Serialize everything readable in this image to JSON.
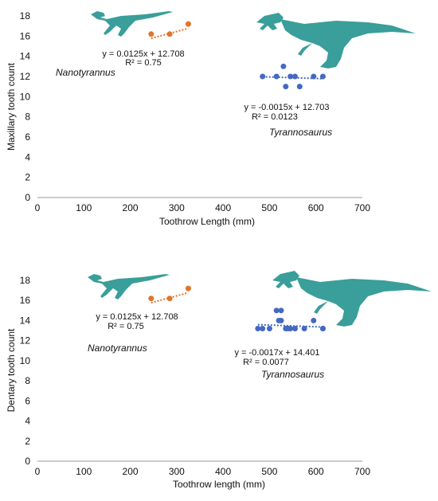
{
  "colors": {
    "nanotyrannus": "#E0752C",
    "tyrannosaurus": "#4468C4",
    "silhouette": "#3A9E9A",
    "axis": "#999999"
  },
  "chart_data": [
    {
      "type": "scatter",
      "xlabel": "Toothrow Length (mm)",
      "ylabel": "Maxillary tooth count",
      "xlim": [
        0,
        700
      ],
      "ylim": [
        0,
        18
      ],
      "xticks": [
        "0",
        "100",
        "200",
        "300",
        "400",
        "500",
        "600",
        "700"
      ],
      "yticks": [
        "0",
        "2",
        "4",
        "6",
        "8",
        "10",
        "12",
        "14",
        "16",
        "18"
      ],
      "grid": false,
      "series": [
        {
          "name": "Nanotyrannus",
          "x": [
            245,
            285,
            325
          ],
          "y": [
            16.2,
            16.2,
            17.2
          ],
          "trendline": {
            "equation": "y = 0.0125x + 12.708",
            "r2": "R² = 0.75",
            "slope": 0.0125,
            "intercept": 12.708
          }
        },
        {
          "name": "Tyrannosaurus",
          "x": [
            485,
            515,
            530,
            535,
            545,
            555,
            565,
            595,
            615
          ],
          "y": [
            12,
            12,
            13,
            11,
            12,
            12,
            11,
            12,
            12
          ],
          "trendline": {
            "equation": "y =  -0.0015x + 12.703",
            "r2": "R² = 0.0123",
            "slope": -0.0015,
            "intercept": 12.703
          }
        }
      ]
    },
    {
      "type": "scatter",
      "xlabel": "Toothrow length (mm)",
      "ylabel": "Dentary tooth count",
      "xlim": [
        0,
        700
      ],
      "ylim": [
        0,
        18
      ],
      "xticks": [
        "0",
        "100",
        "200",
        "300",
        "400",
        "500",
        "600",
        "700"
      ],
      "yticks": [
        "0",
        "2",
        "4",
        "6",
        "8",
        "10",
        "12",
        "14",
        "16",
        "18"
      ],
      "grid": false,
      "series": [
        {
          "name": "Nanotyrannus",
          "x": [
            245,
            285,
            325
          ],
          "y": [
            16.2,
            16.2,
            17.2
          ],
          "trendline": {
            "equation": "y = 0.0125x + 12.708",
            "r2": "R² = 0.75",
            "slope": 0.0125,
            "intercept": 12.708
          }
        },
        {
          "name": "Tyrannosaurus",
          "x": [
            475,
            485,
            500,
            515,
            520,
            525,
            525,
            535,
            540,
            545,
            555,
            575,
            595,
            615,
            615
          ],
          "y": [
            13.2,
            13.2,
            13.2,
            15,
            14,
            15,
            14,
            13.2,
            13.2,
            13.2,
            13.2,
            13.2,
            14,
            13.2,
            13.2
          ],
          "trendline": {
            "equation": "y =  -0.0017x + 14.401",
            "r2": "R² = 0.0077",
            "slope": -0.0017,
            "intercept": 14.401
          }
        }
      ]
    }
  ]
}
